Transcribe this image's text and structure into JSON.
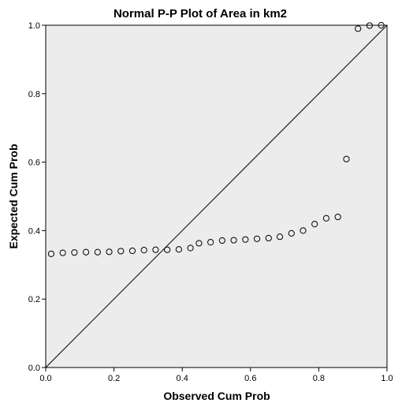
{
  "chart_data": {
    "type": "scatter",
    "title": "Normal P-P Plot of Area in km2",
    "xlabel": "Observed Cum Prob",
    "ylabel": "Expected Cum Prob",
    "xlim": [
      0.0,
      1.0
    ],
    "ylim": [
      0.0,
      1.0
    ],
    "xticks": [
      "0.0",
      "0.2",
      "0.4",
      "0.6",
      "0.8",
      "1.0"
    ],
    "yticks": [
      "0.0",
      "0.2",
      "0.4",
      "0.6",
      "0.8",
      "1.0"
    ],
    "grid": false,
    "reference_line": {
      "from": [
        0.0,
        0.0
      ],
      "to": [
        1.0,
        1.0
      ]
    },
    "plot_background": "#ececec",
    "points": [
      {
        "x": 0.016,
        "y": 0.332
      },
      {
        "x": 0.05,
        "y": 0.335
      },
      {
        "x": 0.084,
        "y": 0.336
      },
      {
        "x": 0.118,
        "y": 0.337
      },
      {
        "x": 0.152,
        "y": 0.337
      },
      {
        "x": 0.186,
        "y": 0.338
      },
      {
        "x": 0.22,
        "y": 0.34
      },
      {
        "x": 0.254,
        "y": 0.341
      },
      {
        "x": 0.288,
        "y": 0.343
      },
      {
        "x": 0.322,
        "y": 0.344
      },
      {
        "x": 0.356,
        "y": 0.344
      },
      {
        "x": 0.39,
        "y": 0.345
      },
      {
        "x": 0.424,
        "y": 0.349
      },
      {
        "x": 0.449,
        "y": 0.363
      },
      {
        "x": 0.483,
        "y": 0.366
      },
      {
        "x": 0.517,
        "y": 0.371
      },
      {
        "x": 0.551,
        "y": 0.372
      },
      {
        "x": 0.585,
        "y": 0.374
      },
      {
        "x": 0.619,
        "y": 0.376
      },
      {
        "x": 0.653,
        "y": 0.378
      },
      {
        "x": 0.686,
        "y": 0.382
      },
      {
        "x": 0.72,
        "y": 0.392
      },
      {
        "x": 0.754,
        "y": 0.4
      },
      {
        "x": 0.788,
        "y": 0.419
      },
      {
        "x": 0.822,
        "y": 0.436
      },
      {
        "x": 0.856,
        "y": 0.44
      },
      {
        "x": 0.881,
        "y": 0.609
      },
      {
        "x": 0.915,
        "y": 0.99
      },
      {
        "x": 0.949,
        "y": 0.999
      },
      {
        "x": 0.983,
        "y": 1.0
      }
    ]
  }
}
